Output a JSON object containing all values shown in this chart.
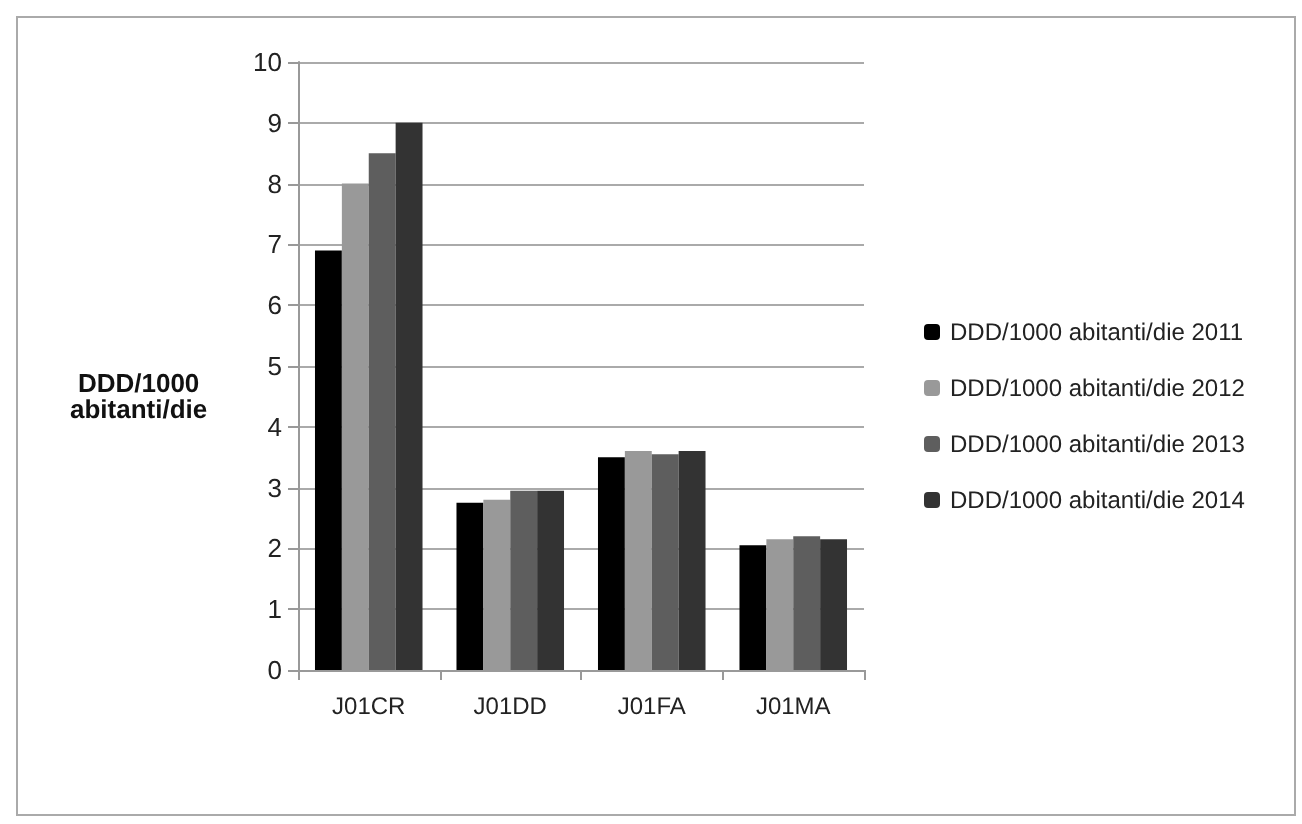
{
  "chart_data": {
    "type": "bar",
    "ylabel": "DDD/1000\nabitanti/die",
    "categories": [
      "J01CR",
      "J01DD",
      "J01FA",
      "J01MA"
    ],
    "series": [
      {
        "name": "DDD/1000 abitanti/die 2011",
        "color": "#000000",
        "values": [
          6.9,
          2.75,
          3.5,
          2.05
        ]
      },
      {
        "name": "DDD/1000 abitanti/die 2012",
        "color": "#999999",
        "values": [
          8.0,
          2.8,
          3.6,
          2.15
        ]
      },
      {
        "name": "DDD/1000 abitanti/die 2013",
        "color": "#5e5e5e",
        "values": [
          8.5,
          2.95,
          3.55,
          2.2
        ]
      },
      {
        "name": "DDD/1000 abitanti/die 2014",
        "color": "#333333",
        "values": [
          9.0,
          2.95,
          3.6,
          2.15
        ]
      }
    ],
    "ylim": [
      0,
      10
    ],
    "yticks": [
      0,
      1,
      2,
      3,
      4,
      5,
      6,
      7,
      8,
      9,
      10
    ],
    "grid": "y",
    "legend": "right"
  }
}
